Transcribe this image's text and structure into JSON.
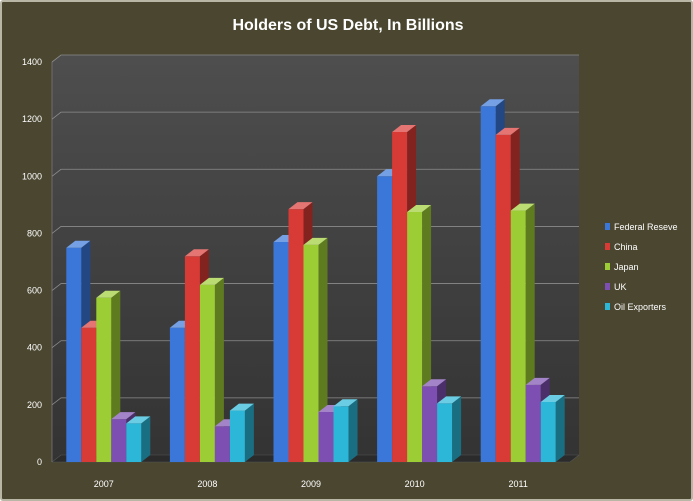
{
  "chart_data": {
    "type": "bar",
    "title": "Holders of US Debt, In Billions",
    "xlabel": "",
    "ylabel": "",
    "categories": [
      "2007",
      "2008",
      "2009",
      "2010",
      "2011"
    ],
    "ylim": [
      0,
      1400
    ],
    "yticks": [
      0,
      200,
      400,
      600,
      800,
      1000,
      1200,
      1400
    ],
    "grid": true,
    "legend_position": "right",
    "series": [
      {
        "name": "Federal Reseve",
        "color": "#3a77d8",
        "values": [
          750,
          470,
          770,
          1000,
          1245
        ]
      },
      {
        "name": "China",
        "color": "#d83a35",
        "values": [
          470,
          720,
          885,
          1155,
          1145
        ]
      },
      {
        "name": "Japan",
        "color": "#9ccd35",
        "values": [
          575,
          620,
          760,
          875,
          880
        ]
      },
      {
        "name": "UK",
        "color": "#7d4fb2",
        "values": [
          150,
          125,
          175,
          265,
          270
        ]
      },
      {
        "name": "Oil Exporters",
        "color": "#2cb7d8",
        "values": [
          135,
          180,
          195,
          205,
          210
        ]
      }
    ]
  }
}
